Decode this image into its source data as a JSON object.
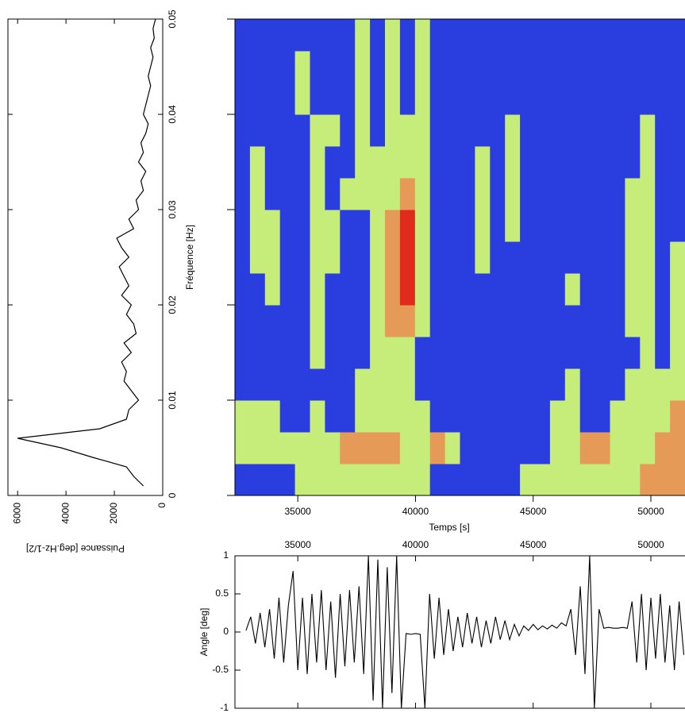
{
  "chart_data": [
    {
      "type": "line",
      "rotated": true,
      "color": "#000000",
      "x": [
        0.001,
        0.002,
        0.003,
        0.004,
        0.005,
        0.006,
        0.007,
        0.008,
        0.009,
        0.01,
        0.011,
        0.012,
        0.013,
        0.014,
        0.015,
        0.016,
        0.017,
        0.018,
        0.019,
        0.02,
        0.021,
        0.022,
        0.023,
        0.024,
        0.025,
        0.026,
        0.027,
        0.028,
        0.029,
        0.03,
        0.031,
        0.032,
        0.033,
        0.034,
        0.035,
        0.036,
        0.037,
        0.038,
        0.039,
        0.04,
        0.041,
        0.042,
        0.043,
        0.044,
        0.045,
        0.046,
        0.047,
        0.048,
        0.049,
        0.05
      ],
      "values": [
        800,
        1200,
        1500,
        2900,
        4200,
        6000,
        2600,
        1500,
        1400,
        1000,
        1300,
        1600,
        1500,
        1700,
        1300,
        1600,
        1100,
        1200,
        1500,
        1300,
        1700,
        1400,
        1600,
        1800,
        1400,
        1700,
        1900,
        1200,
        1400,
        1000,
        1100,
        800,
        900,
        700,
        1000,
        800,
        900,
        700,
        600,
        800,
        700,
        600,
        500,
        600,
        500,
        400,
        500,
        350,
        400,
        300
      ],
      "xlim": [
        0,
        0.05
      ],
      "xticks": [
        0,
        0.01,
        0.02,
        0.03,
        0.04,
        0.05
      ],
      "ylim": [
        0,
        6400
      ],
      "yticks": [
        0,
        2000,
        4000,
        6000
      ],
      "ylabel": "Puissance [deg.Hz-1/2]"
    },
    {
      "type": "contour",
      "ylabel": "Fréquence [Hz]",
      "xlabel": "Temps [s]",
      "xlim": [
        32330,
        51450
      ],
      "xticks": [
        35000,
        40000,
        45000,
        50000
      ],
      "ylim": [
        0,
        0.05
      ],
      "yticks": [
        0,
        0.01,
        0.02,
        0.03,
        0.04,
        0.05
      ],
      "colors": [
        "#2a3ee0",
        "#c6ec7a",
        "#e59a58",
        "#e02a1c"
      ],
      "z": [
        [
          0,
          0,
          0,
          0,
          1,
          1,
          1,
          1,
          1,
          1,
          1,
          1,
          1,
          0,
          0,
          0,
          0,
          0,
          0,
          1,
          1,
          1,
          1,
          1,
          1,
          1,
          1,
          2,
          2,
          2
        ],
        [
          1,
          1,
          1,
          1,
          1,
          1,
          1,
          2,
          2,
          2,
          2,
          1,
          1,
          2,
          1,
          0,
          0,
          0,
          0,
          0,
          0,
          1,
          1,
          2,
          2,
          1,
          1,
          1,
          2,
          2
        ],
        [
          1,
          1,
          1,
          0,
          0,
          1,
          0,
          0,
          1,
          1,
          1,
          1,
          1,
          0,
          0,
          0,
          0,
          0,
          0,
          0,
          0,
          1,
          1,
          0,
          0,
          1,
          1,
          1,
          1,
          2
        ],
        [
          0,
          0,
          0,
          0,
          0,
          0,
          0,
          0,
          1,
          1,
          1,
          1,
          0,
          0,
          0,
          0,
          0,
          0,
          0,
          0,
          0,
          0,
          1,
          0,
          0,
          0,
          1,
          1,
          1,
          1
        ],
        [
          0,
          0,
          0,
          0,
          0,
          1,
          0,
          0,
          0,
          1,
          1,
          1,
          0,
          0,
          0,
          0,
          0,
          0,
          0,
          0,
          0,
          0,
          0,
          0,
          0,
          0,
          0,
          1,
          0,
          1
        ],
        [
          0,
          0,
          0,
          0,
          0,
          1,
          0,
          0,
          0,
          1,
          2,
          2,
          1,
          0,
          0,
          0,
          0,
          0,
          0,
          0,
          0,
          0,
          0,
          0,
          0,
          0,
          1,
          1,
          0,
          1
        ],
        [
          0,
          0,
          1,
          0,
          0,
          1,
          0,
          0,
          0,
          1,
          2,
          3,
          1,
          0,
          0,
          0,
          0,
          0,
          0,
          0,
          0,
          0,
          1,
          0,
          0,
          0,
          1,
          1,
          0,
          1
        ],
        [
          0,
          1,
          1,
          0,
          0,
          1,
          1,
          0,
          0,
          1,
          2,
          3,
          1,
          0,
          0,
          0,
          1,
          0,
          0,
          0,
          0,
          0,
          0,
          0,
          0,
          0,
          1,
          1,
          0,
          1
        ],
        [
          0,
          1,
          1,
          0,
          0,
          1,
          1,
          0,
          0,
          1,
          2,
          3,
          1,
          0,
          0,
          0,
          1,
          0,
          1,
          0,
          0,
          0,
          0,
          0,
          0,
          0,
          1,
          1,
          0,
          0
        ],
        [
          0,
          1,
          0,
          0,
          0,
          1,
          0,
          1,
          1,
          1,
          1,
          2,
          1,
          0,
          0,
          0,
          1,
          0,
          1,
          0,
          0,
          0,
          0,
          0,
          0,
          0,
          1,
          1,
          0,
          0
        ],
        [
          0,
          1,
          0,
          0,
          0,
          1,
          0,
          0,
          1,
          1,
          1,
          1,
          1,
          0,
          0,
          0,
          1,
          0,
          1,
          0,
          0,
          0,
          0,
          0,
          0,
          0,
          0,
          1,
          0,
          0
        ],
        [
          0,
          0,
          0,
          0,
          0,
          1,
          1,
          0,
          1,
          0,
          1,
          1,
          1,
          0,
          0,
          0,
          0,
          0,
          1,
          0,
          0,
          0,
          0,
          0,
          0,
          0,
          0,
          1,
          0,
          0
        ],
        [
          0,
          0,
          0,
          0,
          1,
          0,
          0,
          0,
          1,
          0,
          1,
          0,
          1,
          0,
          0,
          0,
          0,
          0,
          0,
          0,
          0,
          0,
          0,
          0,
          0,
          0,
          0,
          0,
          0,
          0
        ],
        [
          0,
          0,
          0,
          0,
          1,
          0,
          0,
          0,
          1,
          0,
          1,
          0,
          1,
          0,
          0,
          0,
          0,
          0,
          0,
          0,
          0,
          0,
          0,
          0,
          0,
          0,
          0,
          0,
          0,
          0
        ],
        [
          0,
          0,
          0,
          0,
          0,
          0,
          0,
          0,
          1,
          0,
          1,
          0,
          1,
          0,
          0,
          0,
          0,
          0,
          0,
          0,
          0,
          0,
          0,
          0,
          0,
          0,
          0,
          0,
          0,
          0
        ]
      ]
    },
    {
      "type": "line",
      "ylabel": "Angle [deg]",
      "color": "#000000",
      "x": [
        32800,
        33000,
        33200,
        33400,
        33600,
        33800,
        34000,
        34200,
        34400,
        34600,
        34800,
        35000,
        35200,
        35400,
        35600,
        35800,
        36000,
        36200,
        36400,
        36600,
        36800,
        37000,
        37200,
        37400,
        37600,
        37800,
        38000,
        38200,
        38400,
        38600,
        38800,
        39000,
        39200,
        39400,
        39600,
        39800,
        40000,
        40200,
        40400,
        40600,
        40800,
        41000,
        41200,
        41400,
        41600,
        41800,
        42000,
        42200,
        42400,
        42600,
        42800,
        43000,
        43200,
        43400,
        43600,
        43800,
        44000,
        44200,
        44400,
        44600,
        44800,
        45000,
        45200,
        45400,
        45600,
        45800,
        46000,
        46200,
        46400,
        46600,
        46800,
        47000,
        47200,
        47400,
        47600,
        47800,
        48000,
        48200,
        48400,
        48600,
        48800,
        49000,
        49200,
        49400,
        49600,
        49800,
        50000,
        50200,
        50400,
        50600,
        50800,
        51000,
        51200,
        51400
      ],
      "values": [
        0.02,
        0.2,
        -0.15,
        0.25,
        -0.2,
        0.3,
        -0.35,
        0.45,
        -0.4,
        0.35,
        0.8,
        -0.5,
        0.45,
        -0.55,
        0.5,
        -0.4,
        0.55,
        -0.5,
        0.4,
        -0.6,
        0.5,
        -0.45,
        0.55,
        -0.4,
        0.6,
        -0.55,
        1,
        -0.9,
        0.95,
        -1,
        0.85,
        -0.8,
        1,
        -1,
        -0.02,
        -0.03,
        -0.02,
        -0.03,
        -1,
        0.5,
        -0.35,
        0.45,
        -0.3,
        0.3,
        -0.25,
        0.2,
        -0.2,
        0.25,
        -0.15,
        0.2,
        -0.2,
        0.15,
        -0.15,
        0.2,
        -0.1,
        0.15,
        -0.1,
        0.1,
        -0.05,
        0.08,
        0.02,
        0.1,
        0.03,
        0.08,
        0.04,
        0.09,
        0.05,
        0.12,
        0.08,
        0.3,
        -0.3,
        0.6,
        -0.55,
        1,
        -1,
        0.3,
        0.05,
        0.06,
        0.05,
        0.05,
        0.06,
        0.05,
        0.4,
        -0.4,
        0.5,
        -0.5,
        0.45,
        -0.35,
        0.5,
        -0.4,
        0.35,
        -0.5,
        0.4,
        -0.3
      ],
      "xlim": [
        32330,
        51450
      ],
      "xticks": [
        35000,
        40000,
        45000,
        50000
      ],
      "ylim": [
        -1,
        1
      ],
      "yticks": [
        -1,
        -0.5,
        0,
        0.5,
        1
      ]
    }
  ]
}
